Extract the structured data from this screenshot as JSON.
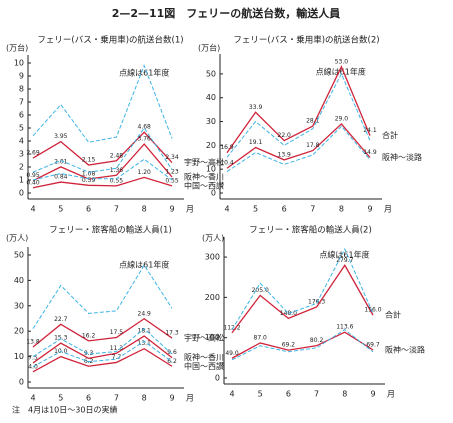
{
  "title": "2—2—11図　フェリーの航送台数，輸送人員",
  "note": "注　4月は10日～30日の実績",
  "chart_data": [
    {
      "type": "line",
      "title": "フェリー(バス・乗用車)の航送台数(1)",
      "y_label": "(万台)",
      "x_label": "月",
      "annotation": "点線は61年度",
      "categories": [
        "4",
        "5",
        "6",
        "7",
        "8",
        "9"
      ],
      "ylim": [
        0,
        10
      ],
      "yticks": [
        0,
        1,
        2,
        3,
        4,
        5,
        6,
        7,
        8,
        9,
        10
      ],
      "series": [
        {
          "name": "宇野～高松",
          "color": "#d0233a",
          "values": [
            2.69,
            3.95,
            2.15,
            2.48,
            4.68,
            2.34
          ],
          "value_labels": [
            "2.69",
            "3.95",
            "2.15",
            "2.48",
            "4.68",
            "2.34"
          ]
        },
        {
          "name": "阪神～香川",
          "color": "#d0233a",
          "values": [
            0.95,
            2.01,
            1.08,
            1.36,
            3.76,
            1.23
          ],
          "value_labels": [
            "0.95",
            "2.01",
            "1.08",
            "1.36",
            "3.76",
            "1.23"
          ]
        },
        {
          "name": "中国～西讃",
          "color": "#d0233a",
          "values": [
            0.4,
            0.84,
            0.59,
            0.55,
            1.2,
            0.55
          ],
          "value_labels": [
            "0.40",
            "0.84",
            "0.59",
            "0.55",
            "1.20",
            "0.55"
          ]
        },
        {
          "color": "#3cb4e6",
          "dashed": true,
          "values": [
            4.4,
            6.8,
            3.9,
            4.3,
            9.8,
            4.2
          ]
        },
        {
          "color": "#3cb4e6",
          "dashed": true,
          "values": [
            1.6,
            2.5,
            1.6,
            1.9,
            5.0,
            1.8
          ]
        },
        {
          "color": "#3cb4e6",
          "dashed": true,
          "values": [
            1.0,
            1.5,
            1.1,
            1.1,
            2.6,
            1.0
          ]
        }
      ]
    },
    {
      "type": "line",
      "title": "フェリー(バス・乗用車)の航送台数(2)",
      "y_label": "(万台)",
      "x_label": "月",
      "annotation": "点線は61年度",
      "categories": [
        "4",
        "5",
        "6",
        "7",
        "8",
        "9"
      ],
      "ylim": [
        0,
        55
      ],
      "yticks": [
        0,
        10,
        20,
        30,
        40,
        50
      ],
      "series": [
        {
          "name": "合計",
          "color": "#d0233a",
          "values": [
            16.9,
            33.9,
            22.0,
            28.1,
            53.0,
            24.1
          ],
          "value_labels": [
            "16.9",
            "33.9",
            "22.0",
            "28.1",
            "53.0",
            "24.1"
          ]
        },
        {
          "name": "阪神～淡路",
          "color": "#d0233a",
          "values": [
            10.4,
            19.1,
            13.9,
            17.8,
            29.0,
            14.9
          ],
          "value_labels": [
            "10.4",
            "19.1",
            "13.9",
            "17.8",
            "29.0",
            "14.9"
          ]
        },
        {
          "color": "#3cb4e6",
          "dashed": true,
          "values": [
            15,
            30,
            20,
            27,
            50,
            22
          ]
        },
        {
          "color": "#3cb4e6",
          "dashed": true,
          "values": [
            9,
            17,
            12,
            16,
            28,
            14
          ]
        }
      ]
    },
    {
      "type": "line",
      "title": "フェリー・旅客船の輸送人員(1)",
      "y_label": "(万人)",
      "x_label": "月",
      "annotation": "点線は61年度",
      "categories": [
        "4",
        "5",
        "6",
        "7",
        "8",
        "9"
      ],
      "ylim": [
        0,
        50
      ],
      "yticks": [
        0,
        10,
        20,
        30,
        40,
        50
      ],
      "series": [
        {
          "name": "宇野～高松",
          "color": "#d0233a",
          "values": [
            13.8,
            22.7,
            16.2,
            17.5,
            24.9,
            17.3
          ],
          "value_labels": [
            "13.8",
            "22.7",
            "16.2",
            "17.5",
            "24.9",
            "17.3"
          ]
        },
        {
          "name": "阪神～香川",
          "color": "#d0233a",
          "values": [
            7.5,
            15.3,
            9.3,
            11.3,
            18.1,
            9.6
          ],
          "value_labels": [
            "7.5",
            "15.3",
            "9.3",
            "11.3",
            "18.1",
            "9.6"
          ]
        },
        {
          "name": "中国～西讃",
          "color": "#d0233a",
          "values": [
            4.0,
            10.0,
            6.2,
            7.7,
            13.1,
            6.2
          ],
          "value_labels": [
            "4.0",
            "10.0",
            "6.2",
            "7.7",
            "13.1",
            "6.2"
          ]
        },
        {
          "color": "#3cb4e6",
          "dashed": true,
          "values": [
            21,
            38,
            27,
            28,
            46,
            29
          ]
        },
        {
          "color": "#3cb4e6",
          "dashed": true,
          "values": [
            10,
            17,
            11,
            12,
            21,
            11
          ]
        },
        {
          "color": "#3cb4e6",
          "dashed": true,
          "values": [
            6,
            12,
            8,
            9,
            16,
            8
          ]
        }
      ]
    },
    {
      "type": "line",
      "title": "フェリー・旅客船の輸送人員(2)",
      "y_label": "(万人)",
      "x_label": "月",
      "annotation": "点線は61年度",
      "categories": [
        "4",
        "5",
        "6",
        "7",
        "8",
        "9"
      ],
      "ylim": [
        0,
        330
      ],
      "yticks": [
        0,
        100,
        200,
        300
      ],
      "series": [
        {
          "name": "合計",
          "color": "#d0233a",
          "values": [
            112.2,
            205.0,
            148.0,
            176.3,
            279.7,
            156.0
          ],
          "value_labels": [
            "112.2",
            "205.0",
            "148.0",
            "176.3",
            "279.7",
            "156.0"
          ]
        },
        {
          "name": "阪神～淡路",
          "color": "#d0233a",
          "values": [
            49.0,
            87.0,
            69.2,
            80.2,
            113.6,
            69.7
          ],
          "value_labels": [
            "49.0",
            "87.0",
            "69.2",
            "80.2",
            "113.6",
            "69.7"
          ]
        },
        {
          "color": "#3cb4e6",
          "dashed": true,
          "values": [
            120,
            235,
            160,
            185,
            320,
            160
          ]
        },
        {
          "color": "#3cb4e6",
          "dashed": true,
          "values": [
            45,
            80,
            65,
            75,
            120,
            65
          ]
        }
      ]
    }
  ]
}
